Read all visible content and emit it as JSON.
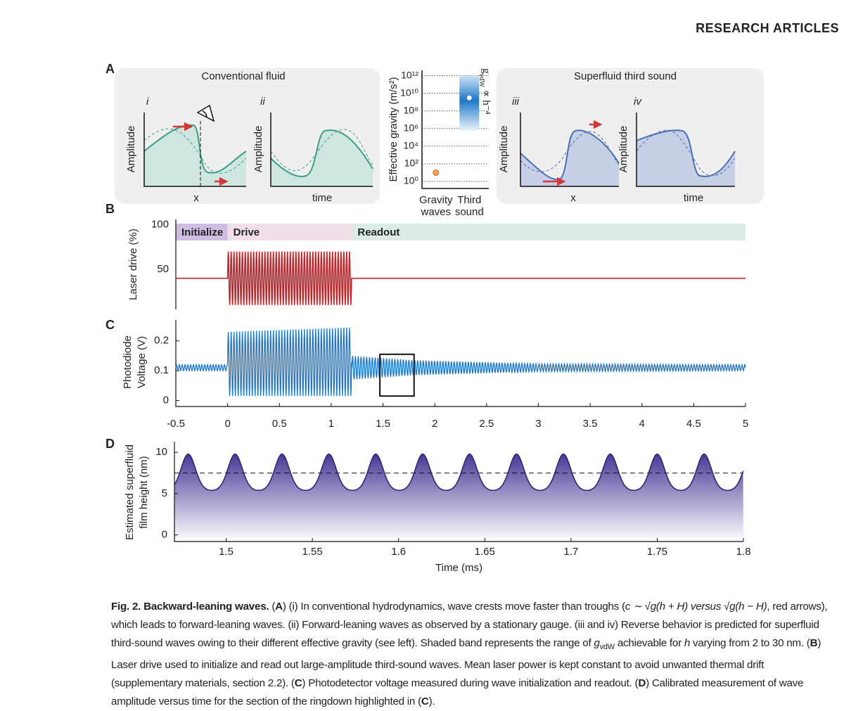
{
  "header": "RESEARCH ARTICLES",
  "panel_a": {
    "label": "A",
    "left": {
      "title": "Conventional fluid",
      "plots": [
        {
          "label": "i",
          "ylabel": "Amplitude",
          "xlabel": "x"
        },
        {
          "label": "ii",
          "ylabel": "Amplitude",
          "xlabel": "time"
        }
      ]
    },
    "right": {
      "title": "Superfluid third sound",
      "plots": [
        {
          "label": "iii",
          "ylabel": "Amplitude",
          "xlabel": "x"
        },
        {
          "label": "iv",
          "ylabel": "Amplitude",
          "xlabel": "time"
        }
      ]
    }
  },
  "chart_data": [
    {
      "type": "log_range",
      "ylabel": "Effective gravity (m/s²)",
      "categories": [
        "Gravity waves",
        "Third sound"
      ],
      "points": [
        9.8,
        3000000000
      ],
      "point_colors": [
        "#f0a04b",
        "#ffffff"
      ],
      "bands": [
        null,
        [
          600000,
          1000000000000
        ]
      ],
      "band_color": "#1f78c8",
      "annotation": {
        "base": "g",
        "sub": "vdW",
        "rest": " ∝ h⁻⁴"
      },
      "log": true,
      "grid": true,
      "ylim": [
        0.16,
        4000000000000
      ],
      "yticks": [
        {
          "value": 1,
          "label": "10⁰"
        },
        {
          "value": 100,
          "label": "10²"
        },
        {
          "value": 10000,
          "label": "10⁴"
        },
        {
          "value": 1000000,
          "label": "10⁶"
        },
        {
          "value": 100000000,
          "label": "10⁸"
        },
        {
          "value": 10000000000,
          "label": "10¹⁰"
        },
        {
          "value": 1000000000000,
          "label": "10¹²"
        }
      ]
    },
    {
      "type": "drive",
      "label": "B",
      "ylabel": "Laser drive (%)",
      "xlim": [
        -0.5,
        5
      ],
      "ylim": [
        5,
        106
      ],
      "yticks": [
        50,
        100
      ],
      "phases": [
        {
          "name": "Initialize",
          "start": -0.5,
          "end": 0,
          "color": "#cdbde3"
        },
        {
          "name": "Drive",
          "start": 0,
          "end": 1.2,
          "color": "#f0dfea"
        },
        {
          "name": "Readout",
          "start": 1.2,
          "end": 5,
          "color": "#dcebe6"
        }
      ],
      "signal": {
        "color": "#c0282e",
        "baseline": 40,
        "drive": {
          "start": 0,
          "end": 1.2,
          "min": 10,
          "max": 70,
          "period": 0.0272
        }
      }
    },
    {
      "type": "envelope",
      "label": "C",
      "ylabel": [
        "Photodiode",
        "Voltage (V)"
      ],
      "xlim": [
        -0.5,
        5
      ],
      "ylim": [
        -0.02,
        0.27
      ],
      "yticks": [
        0,
        0.1,
        0.2
      ],
      "xticks": [
        -0.5,
        0,
        0.5,
        1,
        1.5,
        2,
        2.5,
        3,
        3.5,
        4,
        4.5,
        5
      ],
      "color": "#1f77c4",
      "period": 0.0272,
      "segments": [
        {
          "start": -0.5,
          "end": 0,
          "low": [
            0.1,
            0.1
          ],
          "high": [
            0.12,
            0.12
          ]
        },
        {
          "start": 0,
          "end": 1.2,
          "low": [
            0.015,
            0.015
          ],
          "high": [
            0.23,
            0.245
          ]
        },
        {
          "start": 1.2,
          "end": 1.8,
          "low": [
            0.07,
            0.085
          ],
          "high": [
            0.15,
            0.135
          ]
        },
        {
          "start": 1.8,
          "end": 3,
          "low": [
            0.085,
            0.097
          ],
          "high": [
            0.135,
            0.123
          ]
        },
        {
          "start": 3,
          "end": 5,
          "low": [
            0.097,
            0.1
          ],
          "high": [
            0.123,
            0.12
          ]
        }
      ],
      "highlight": {
        "x": [
          1.47,
          1.8
        ],
        "y": [
          0.015,
          0.155
        ]
      }
    },
    {
      "type": "wave",
      "label": "D",
      "ylabel": [
        "Estimated superfluid",
        "film height (nm)"
      ],
      "xlabel": "Time (ms)",
      "xlim": [
        1.47,
        1.8
      ],
      "ylim": [
        -0.8,
        11.3
      ],
      "yticks": [
        0,
        5,
        10
      ],
      "xticks": [
        1.5,
        1.55,
        1.6,
        1.65,
        1.7,
        1.75,
        1.8
      ],
      "color": "#35246e",
      "fill": "#5a48a3",
      "high": 9.8,
      "low": 5.4,
      "mean": 7.5,
      "period": 0.0272,
      "first_peak": 1.478
    }
  ],
  "caption": [
    {
      "text": "Fig. 2. Backward-leaning waves.",
      "bold": true
    },
    {
      "text": " ("
    },
    {
      "text": "A",
      "bold": true
    },
    {
      "text": ") (i) In conventional hydrodynamics, wave crests move faster than troughs ("
    },
    {
      "text": "c ∼ √g(h + H) versus √g(h − H)",
      "italic": true
    },
    {
      "text": ", red arrows), which leads to forward-leaning waves. (ii) Forward-leaning waves as observed by a stationary gauge. (iii and iv) Reverse behavior is predicted for superfluid third-sound waves owing to their different effective gravity (see left). Shaded band represents the range of "
    },
    {
      "text": "g",
      "italic": true
    },
    {
      "text": "vdW",
      "sub": true
    },
    {
      "text": " achievable for "
    },
    {
      "text": "h",
      "italic": true
    },
    {
      "text": " varying from 2 to 30 nm. ("
    },
    {
      "text": "B",
      "bold": true
    },
    {
      "text": ") Laser drive used to initialize and read out large-amplitude third-sound waves. Mean laser power is kept constant to avoid unwanted thermal drift (supplementary materials, section 2.2). ("
    },
    {
      "text": "C",
      "bold": true
    },
    {
      "text": ") Photodetector voltage measured during wave initialization and readout. ("
    },
    {
      "text": "D",
      "bold": true
    },
    {
      "text": ") Calibrated measurement of wave amplitude versus time for the section of the ringdown highlighted in ("
    },
    {
      "text": "C",
      "bold": true
    },
    {
      "text": ")."
    }
  ]
}
